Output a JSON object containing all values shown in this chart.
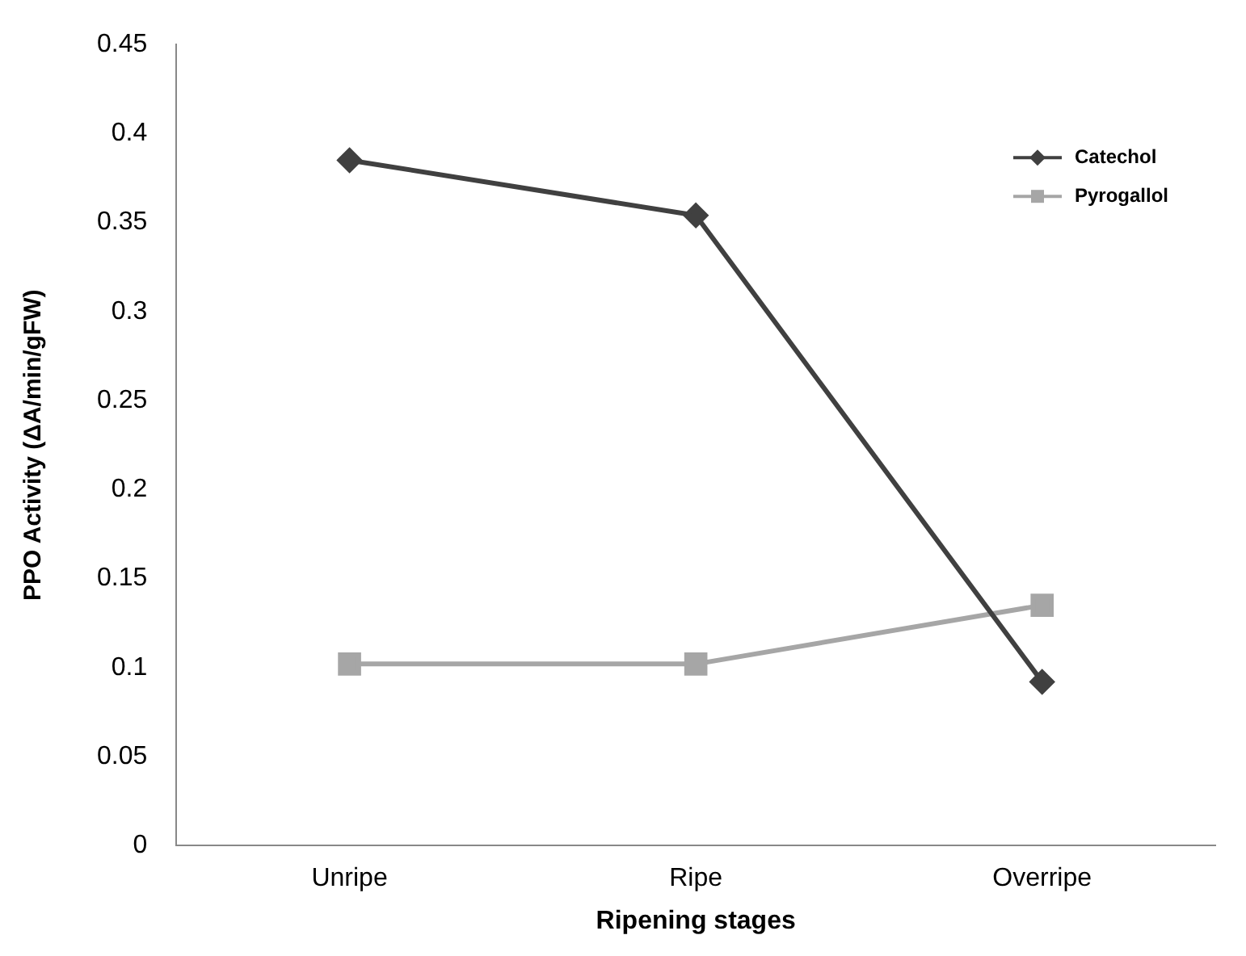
{
  "chart_data": {
    "type": "line",
    "xlabel": "Ripening stages",
    "ylabel": "PPO Activity (ΔA/min/gFW)",
    "categories": [
      "Unripe",
      "Ripe",
      "Overripe"
    ],
    "series": [
      {
        "name": "Catechol",
        "color": "#404040",
        "marker": "diamond",
        "values": [
          0.385,
          0.354,
          0.092
        ]
      },
      {
        "name": "Pyrogallol",
        "color": "#a6a6a6",
        "marker": "square",
        "values": [
          0.102,
          0.102,
          0.135
        ]
      }
    ],
    "ylim": [
      0,
      0.45
    ],
    "yticks": [
      0,
      0.05,
      0.1,
      0.15,
      0.2,
      0.25,
      0.3,
      0.35,
      0.4,
      0.45
    ],
    "grid": false,
    "legend": "top right",
    "line_style": "solid"
  }
}
